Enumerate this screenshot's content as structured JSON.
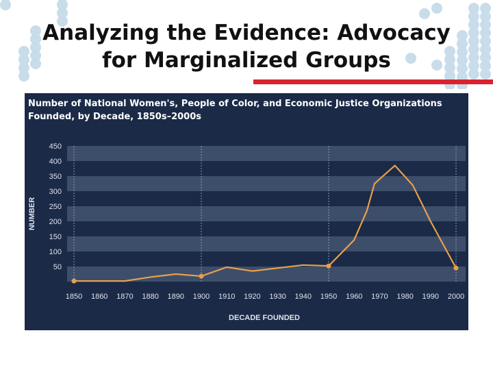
{
  "slide": {
    "title_line1": "Analyzing the Evidence: Advocacy",
    "title_line2": "for Marginalized Groups"
  },
  "colors": {
    "panel_bg": "#1b2a47",
    "band": "#3d4e6b",
    "line": "#e9a04b",
    "accent_red": "#d9232e",
    "decor_circles": "#c8dcea"
  },
  "chart_data": {
    "type": "line",
    "title_line1": "Number of National Women's, People of Color, and Economic Justice Organizations",
    "title_line2": "Founded, by Decade, 1850s–2000s",
    "xlabel": "DECADE FOUNDED",
    "ylabel": "NUMBER",
    "xlim": [
      1850,
      2000
    ],
    "ylim": [
      0,
      450
    ],
    "x_ticks": [
      1850,
      1860,
      1870,
      1880,
      1890,
      1900,
      1910,
      1920,
      1930,
      1940,
      1950,
      1960,
      1970,
      1980,
      1990,
      2000
    ],
    "y_ticks": [
      50,
      100,
      150,
      200,
      250,
      300,
      350,
      400,
      450
    ],
    "grid": "alternating horizontal bands",
    "vertical_reference_lines": [
      1850,
      1900,
      1950,
      2000
    ],
    "series": [
      {
        "points": [
          [
            1850,
            2
          ],
          [
            1860,
            2
          ],
          [
            1870,
            2
          ],
          [
            1880,
            15
          ],
          [
            1890,
            25
          ],
          [
            1900,
            18
          ],
          [
            1910,
            48
          ],
          [
            1920,
            35
          ],
          [
            1930,
            45
          ],
          [
            1940,
            55
          ],
          [
            1950,
            52
          ],
          [
            1960,
            138
          ],
          [
            1965,
            235
          ],
          [
            1968,
            325
          ],
          [
            1976,
            385
          ],
          [
            1983,
            320
          ],
          [
            1990,
            200
          ],
          [
            2000,
            45
          ]
        ],
        "marked_points": [
          1850,
          1900,
          1950,
          2000
        ]
      }
    ]
  }
}
